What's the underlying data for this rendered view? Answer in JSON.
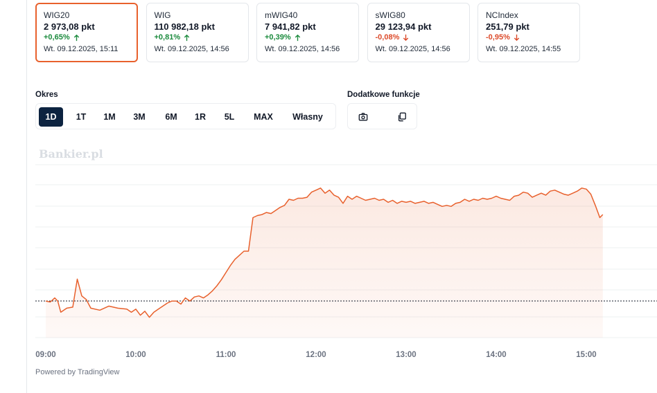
{
  "indices": [
    {
      "name": "WIG20",
      "value": "2 973,08 pkt",
      "change": "+0,65%",
      "direction": "up",
      "date": "Wt. 09.12.2025, 15:11",
      "active": true
    },
    {
      "name": "WIG",
      "value": "110 982,18 pkt",
      "change": "+0,81%",
      "direction": "up",
      "date": "Wt. 09.12.2025, 14:56",
      "active": false
    },
    {
      "name": "mWIG40",
      "value": "7 941,82 pkt",
      "change": "+0,39%",
      "direction": "up",
      "date": "Wt. 09.12.2025, 14:56",
      "active": false
    },
    {
      "name": "sWIG80",
      "value": "29 123,94 pkt",
      "change": "-0,08%",
      "direction": "down",
      "date": "Wt. 09.12.2025, 14:56",
      "active": false
    },
    {
      "name": "NCIndex",
      "value": "251,79 pkt",
      "change": "-0,95%",
      "direction": "down",
      "date": "Wt. 09.12.2025, 14:55",
      "active": false
    }
  ],
  "period": {
    "label": "Okres",
    "options": [
      "1D",
      "1T",
      "1M",
      "3M",
      "6M",
      "1R",
      "5L",
      "MAX",
      "Własny"
    ],
    "selected": "1D"
  },
  "extras": {
    "label": "Dodatkowe funkcje",
    "buttons": [
      {
        "icon": "camera-icon"
      },
      {
        "icon": "copy-icon"
      }
    ]
  },
  "watermark": "Bankier.pl",
  "powered_by": "Powered by TradingView",
  "colors": {
    "up": "#1a8a3c",
    "down": "#dc4a2a",
    "line": "#e8602c",
    "accent": "#0c2340"
  },
  "chart_data": {
    "type": "area",
    "x_ticks": [
      "09:00",
      "10:00",
      "11:00",
      "12:00",
      "13:00",
      "14:00",
      "15:00"
    ],
    "x_start": "09:00",
    "x_end": "15:11",
    "reference_line": "dotted horizontal line at previous close",
    "points": [
      [
        "09:00",
        2.92
      ],
      [
        "09:03",
        2.9
      ],
      [
        "09:06",
        2.98
      ],
      [
        "09:08",
        2.92
      ],
      [
        "09:10",
        2.7
      ],
      [
        "09:14",
        2.78
      ],
      [
        "09:18",
        2.8
      ],
      [
        "09:21",
        3.35
      ],
      [
        "09:24",
        3.02
      ],
      [
        "09:27",
        2.95
      ],
      [
        "09:30",
        2.78
      ],
      [
        "09:36",
        2.74
      ],
      [
        "09:42",
        2.82
      ],
      [
        "09:48",
        2.78
      ],
      [
        "09:54",
        2.76
      ],
      [
        "09:57",
        2.7
      ],
      [
        "10:00",
        2.76
      ],
      [
        "10:03",
        2.64
      ],
      [
        "10:06",
        2.72
      ],
      [
        "10:09",
        2.6
      ],
      [
        "10:12",
        2.7
      ],
      [
        "10:15",
        2.76
      ],
      [
        "10:18",
        2.82
      ],
      [
        "10:21",
        2.88
      ],
      [
        "10:24",
        2.92
      ],
      [
        "10:27",
        2.92
      ],
      [
        "10:30",
        2.86
      ],
      [
        "10:33",
        2.98
      ],
      [
        "10:36",
        2.92
      ],
      [
        "10:39",
        3.0
      ],
      [
        "10:42",
        3.02
      ],
      [
        "10:45",
        2.98
      ],
      [
        "10:48",
        3.04
      ],
      [
        "10:51",
        3.12
      ],
      [
        "10:54",
        3.22
      ],
      [
        "10:57",
        3.34
      ],
      [
        "11:00",
        3.48
      ],
      [
        "11:03",
        3.62
      ],
      [
        "11:06",
        3.74
      ],
      [
        "11:09",
        3.82
      ],
      [
        "11:12",
        3.9
      ],
      [
        "11:15",
        3.9
      ],
      [
        "11:18",
        4.56
      ],
      [
        "11:21",
        4.6
      ],
      [
        "11:24",
        4.62
      ],
      [
        "11:27",
        4.66
      ],
      [
        "11:30",
        4.64
      ],
      [
        "11:33",
        4.7
      ],
      [
        "11:36",
        4.76
      ],
      [
        "11:39",
        4.8
      ],
      [
        "11:42",
        4.92
      ],
      [
        "11:45",
        4.9
      ],
      [
        "11:48",
        4.94
      ],
      [
        "11:51",
        4.94
      ],
      [
        "11:54",
        4.96
      ],
      [
        "11:57",
        5.06
      ],
      [
        "12:00",
        5.1
      ],
      [
        "12:03",
        5.14
      ],
      [
        "12:06",
        5.04
      ],
      [
        "12:09",
        5.1
      ],
      [
        "12:12",
        5.0
      ],
      [
        "12:15",
        4.96
      ],
      [
        "12:18",
        4.84
      ],
      [
        "12:21",
        4.98
      ],
      [
        "12:24",
        4.92
      ],
      [
        "12:27",
        4.98
      ],
      [
        "12:30",
        4.94
      ],
      [
        "12:33",
        4.9
      ],
      [
        "12:36",
        4.92
      ],
      [
        "12:39",
        4.94
      ],
      [
        "12:42",
        4.9
      ],
      [
        "12:45",
        4.92
      ],
      [
        "12:48",
        4.86
      ],
      [
        "12:51",
        4.9
      ],
      [
        "12:54",
        4.84
      ],
      [
        "12:57",
        4.88
      ],
      [
        "13:00",
        4.86
      ],
      [
        "13:03",
        4.88
      ],
      [
        "13:06",
        4.84
      ],
      [
        "13:09",
        4.86
      ],
      [
        "13:12",
        4.88
      ],
      [
        "13:15",
        4.84
      ],
      [
        "13:18",
        4.86
      ],
      [
        "13:21",
        4.82
      ],
      [
        "13:24",
        4.78
      ],
      [
        "13:27",
        4.8
      ],
      [
        "13:30",
        4.78
      ],
      [
        "13:33",
        4.84
      ],
      [
        "13:36",
        4.86
      ],
      [
        "13:39",
        4.92
      ],
      [
        "13:42",
        4.88
      ],
      [
        "13:45",
        4.92
      ],
      [
        "13:48",
        4.9
      ],
      [
        "13:51",
        4.94
      ],
      [
        "13:54",
        4.92
      ],
      [
        "13:57",
        4.94
      ],
      [
        "14:00",
        4.98
      ],
      [
        "14:03",
        4.94
      ],
      [
        "14:06",
        4.92
      ],
      [
        "14:09",
        4.9
      ],
      [
        "14:12",
        4.98
      ],
      [
        "14:15",
        5.0
      ],
      [
        "14:18",
        5.06
      ],
      [
        "14:21",
        5.04
      ],
      [
        "14:24",
        4.96
      ],
      [
        "14:27",
        5.0
      ],
      [
        "14:30",
        5.04
      ],
      [
        "14:33",
        5.0
      ],
      [
        "14:36",
        5.08
      ],
      [
        "14:39",
        5.1
      ],
      [
        "14:42",
        5.06
      ],
      [
        "14:45",
        5.02
      ],
      [
        "14:48",
        5.0
      ],
      [
        "14:51",
        5.04
      ],
      [
        "14:54",
        5.08
      ],
      [
        "14:57",
        5.14
      ],
      [
        "15:00",
        5.12
      ],
      [
        "15:03",
        5.02
      ],
      [
        "15:06",
        4.8
      ],
      [
        "15:09",
        4.56
      ],
      [
        "15:11",
        4.62
      ]
    ],
    "reference_value": 2.92,
    "ylim": [
      2.2,
      5.6
    ]
  }
}
